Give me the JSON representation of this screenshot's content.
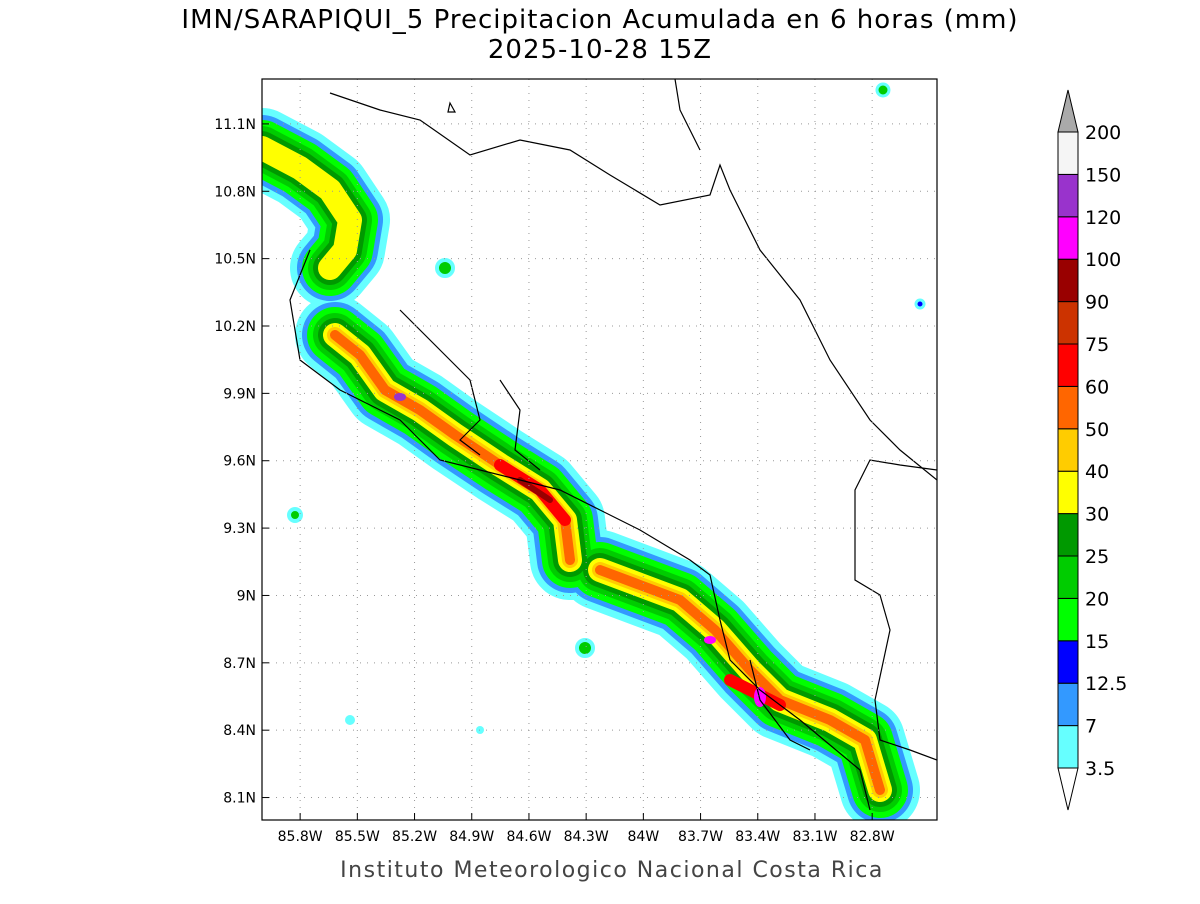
{
  "header": {
    "title": "IMN/SARAPIQUI_5 Precipitacion Acumulada en 6 horas (mm)",
    "subtitle": "2025-10-28 15Z"
  },
  "map": {
    "lonlim": [
      -86.0,
      -82.46
    ],
    "latlim": [
      8.0,
      11.3
    ],
    "lat_ticks": [
      {
        "value": 11.1,
        "label": "11.1N"
      },
      {
        "value": 10.8,
        "label": "10.8N"
      },
      {
        "value": 10.5,
        "label": "10.5N"
      },
      {
        "value": 10.2,
        "label": "10.2N"
      },
      {
        "value": 9.9,
        "label": "9.9N"
      },
      {
        "value": 9.6,
        "label": "9.6N"
      },
      {
        "value": 9.3,
        "label": "9.3N"
      },
      {
        "value": 9.0,
        "label": "9N"
      },
      {
        "value": 8.7,
        "label": "8.7N"
      },
      {
        "value": 8.4,
        "label": "8.4N"
      },
      {
        "value": 8.1,
        "label": "8.1N"
      }
    ],
    "lon_ticks": [
      {
        "value": -85.8,
        "label": "85.8W"
      },
      {
        "value": -85.5,
        "label": "85.5W"
      },
      {
        "value": -85.2,
        "label": "85.2W"
      },
      {
        "value": -84.9,
        "label": "84.9W"
      },
      {
        "value": -84.6,
        "label": "84.6W"
      },
      {
        "value": -84.3,
        "label": "84.3W"
      },
      {
        "value": -84.0,
        "label": "84W"
      },
      {
        "value": -83.7,
        "label": "83.7W"
      },
      {
        "value": -83.4,
        "label": "83.4W"
      },
      {
        "value": -83.1,
        "label": "83.1W"
      },
      {
        "value": -82.8,
        "label": "82.8W"
      }
    ]
  },
  "colorbar": {
    "labels": [
      "3.5",
      "7",
      "12.5",
      "15",
      "20",
      "25",
      "30",
      "40",
      "50",
      "60",
      "75",
      "90",
      "100",
      "120",
      "150",
      "200"
    ],
    "colors": [
      "#66ffff",
      "#3399ff",
      "#0000ff",
      "#00ff00",
      "#00cc00",
      "#009900",
      "#ffff00",
      "#ffcc00",
      "#ff6600",
      "#ff0000",
      "#cc3300",
      "#990000",
      "#ff00ff",
      "#9933cc",
      "#f5f5f5"
    ],
    "over_color": "#aaaaaa",
    "under_color": "#ffffff"
  },
  "footer": "Instituto Meteorologico Nacional Costa Rica"
}
